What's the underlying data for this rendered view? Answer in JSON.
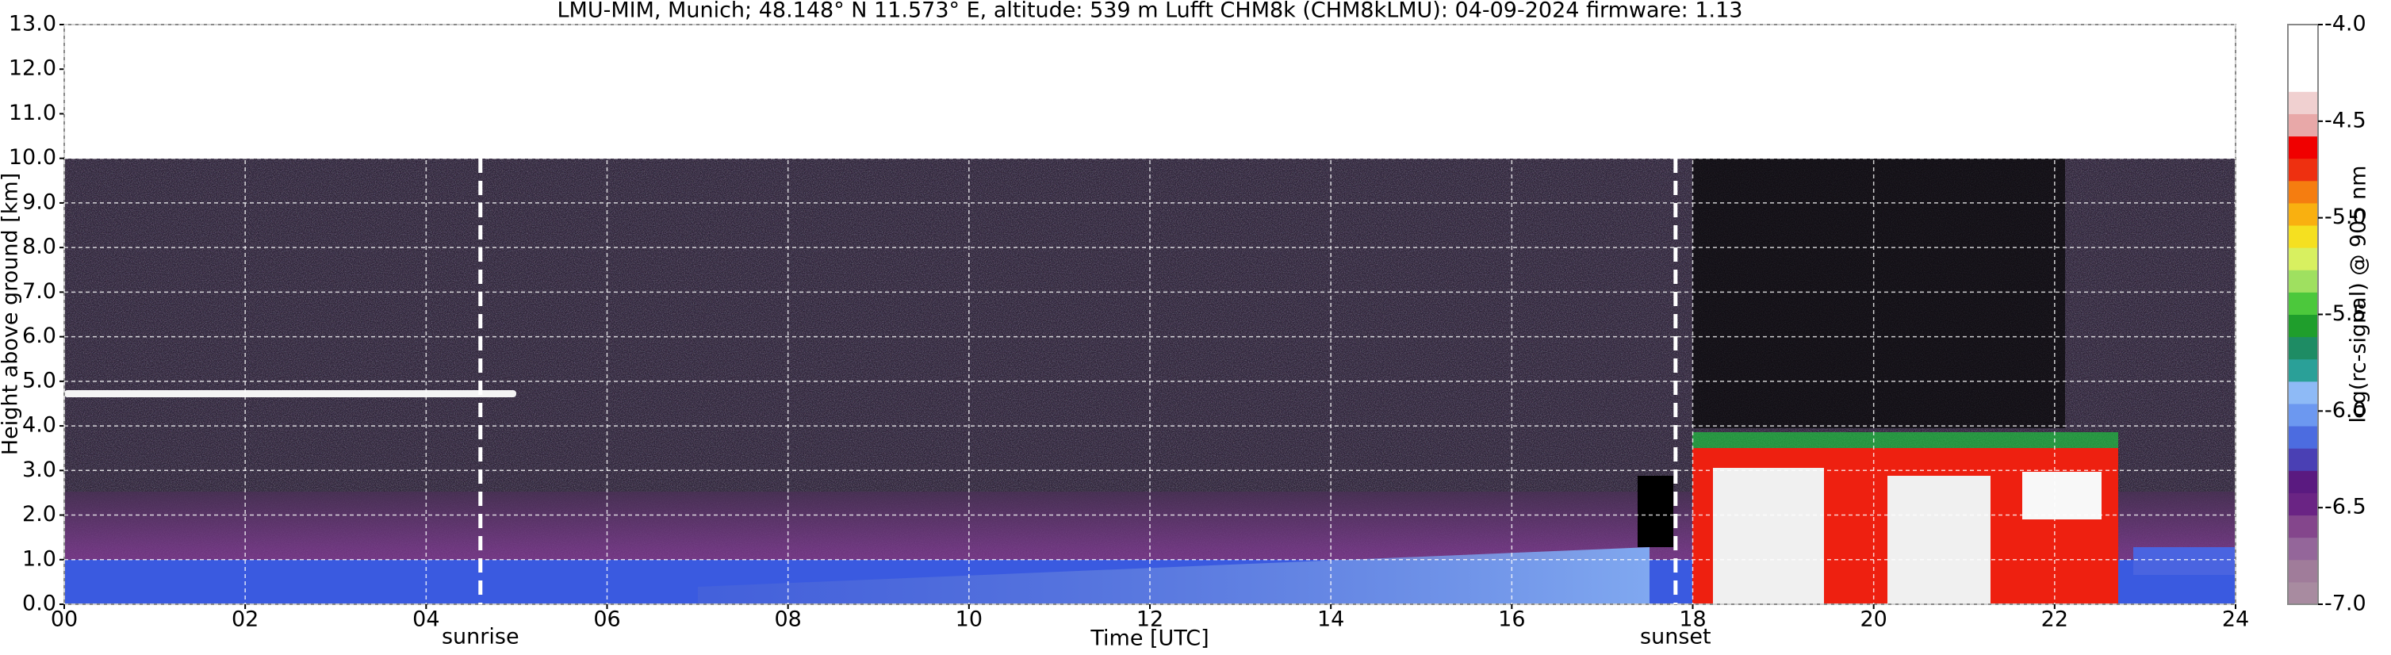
{
  "chart_data": {
    "type": "heatmap",
    "title": "LMU-MIM, Munich; 48.148° N 11.573° E, altitude: 539 m    Lufft CHM8k (CHM8kLMU): 04-09-2024    firmware: 1.13",
    "xlabel": "Time [UTC]",
    "ylabel": "Height above ground [km]",
    "xlim": [
      0,
      24
    ],
    "xticks": [
      {
        "value": 0,
        "label": "00"
      },
      {
        "value": 2,
        "label": "02"
      },
      {
        "value": 4,
        "label": "04"
      },
      {
        "value": 6,
        "label": "06"
      },
      {
        "value": 8,
        "label": "08"
      },
      10,
      12,
      14,
      16,
      18,
      20,
      22,
      24
    ],
    "ylim": [
      0,
      13
    ],
    "yticks": [
      {
        "value": 0,
        "label": "0.0"
      },
      {
        "value": 1,
        "label": "1.0"
      },
      {
        "value": 2,
        "label": "2.0"
      },
      {
        "value": 3,
        "label": "3.0"
      },
      {
        "value": 4,
        "label": "4.0"
      },
      {
        "value": 5,
        "label": "5.0"
      },
      {
        "value": 6,
        "label": "6.0"
      },
      {
        "value": 7,
        "label": "7.0"
      },
      {
        "value": 8,
        "label": "8.0"
      },
      {
        "value": 9,
        "label": "9.0"
      },
      {
        "value": 10,
        "label": "10.0"
      },
      {
        "value": 11,
        "label": "11.0"
      },
      {
        "value": 12,
        "label": "12.0"
      },
      {
        "value": 13,
        "label": "13.0"
      }
    ],
    "grid": true,
    "annotations": [
      {
        "text": "sunrise",
        "x": 4.6
      },
      {
        "text": "sunset",
        "x": 17.81
      }
    ],
    "colorbar": {
      "label": "log(rc-signal) @ 905 nm",
      "lim": [
        -7,
        -4
      ],
      "ticks": [
        {
          "value": -4,
          "label": "-4.0"
        },
        {
          "value": -4.5,
          "label": "-4.5"
        },
        {
          "value": -5,
          "label": "-5.0"
        },
        {
          "value": -5.5,
          "label": "-5.5"
        },
        {
          "value": -6,
          "label": "-6.0"
        },
        {
          "value": -6.5,
          "label": "-6.5"
        },
        {
          "value": -7,
          "label": "-7.0"
        }
      ],
      "colors": [
        "#a88ba0",
        "#a07c9a",
        "#94669a",
        "#84468c",
        "#6a2484",
        "#5a1a80",
        "#4a40b4",
        "#4c6ce0",
        "#6c98f0",
        "#8ebaf6",
        "#2aa098",
        "#1e8c64",
        "#1f9e2c",
        "#4cc83c",
        "#9fe060",
        "#d8f060",
        "#f5e020",
        "#f9b010",
        "#f57d10",
        "#ee3010",
        "#f00000",
        "#e8a8a8",
        "#f0d0d0",
        "#ffffff",
        "#ffffff",
        "#ffffff"
      ]
    }
  }
}
